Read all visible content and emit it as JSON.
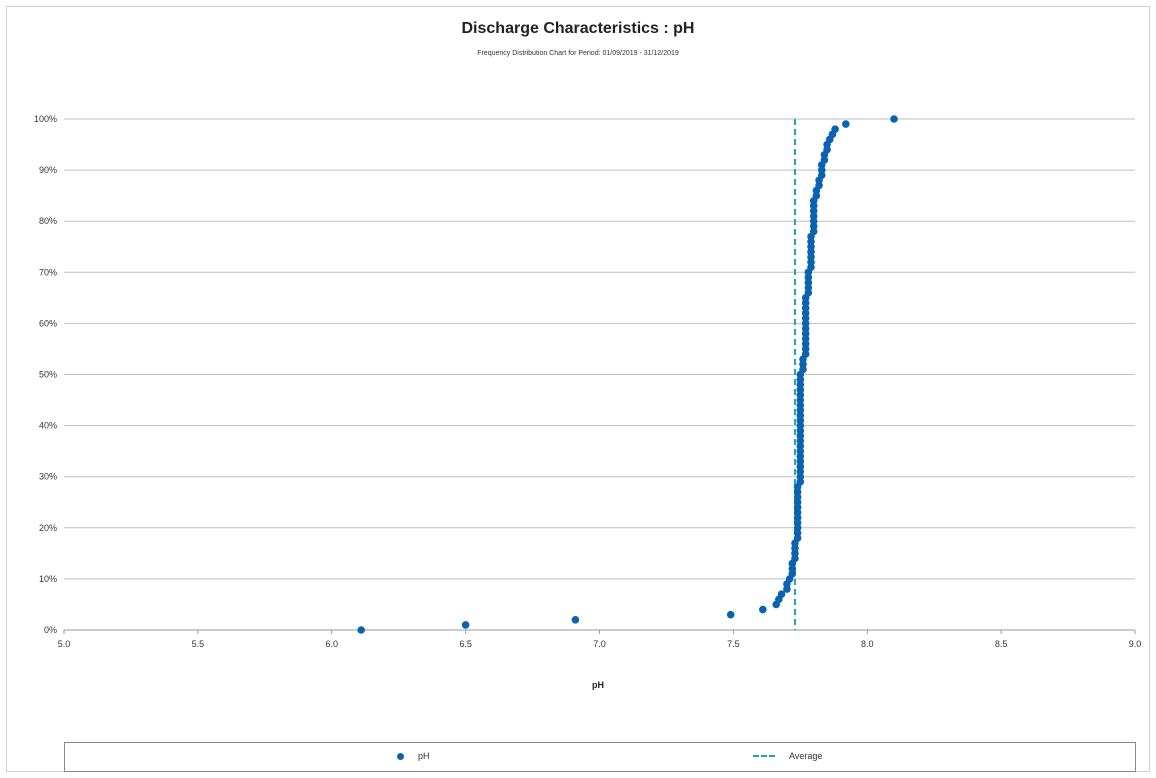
{
  "chart_data": {
    "type": "scatter",
    "title": "Discharge Characteristics : pH",
    "subtitle": "Frequency Distribution Chart for Period: 01/09/2019 - 31/12/2019",
    "xlabel": "pH",
    "ylabel": "",
    "xlim": [
      5.0,
      9.0
    ],
    "ylim": [
      0,
      100
    ],
    "x_ticks": [
      "5.0",
      "5.5",
      "6.0",
      "6.5",
      "7.0",
      "7.5",
      "8.0",
      "8.5",
      "9.0"
    ],
    "y_ticks": [
      "0%",
      "10%",
      "20%",
      "30%",
      "40%",
      "50%",
      "60%",
      "70%",
      "80%",
      "90%",
      "100%"
    ],
    "grid": "horizontal",
    "legend_placement": "bottom",
    "colors": {
      "series": "#0b63b0",
      "average": "#1aa9b4",
      "grid": "#bfbfbf"
    },
    "series": [
      {
        "name": "pH",
        "points": [
          [
            6.11,
            0
          ],
          [
            6.5,
            1
          ],
          [
            6.91,
            2
          ],
          [
            7.49,
            3
          ],
          [
            7.61,
            4
          ],
          [
            7.66,
            5
          ],
          [
            7.67,
            6
          ],
          [
            7.68,
            7
          ],
          [
            7.7,
            8
          ],
          [
            7.7,
            9
          ],
          [
            7.71,
            10
          ],
          [
            7.72,
            11
          ],
          [
            7.72,
            12
          ],
          [
            7.72,
            13
          ],
          [
            7.73,
            14
          ],
          [
            7.73,
            15
          ],
          [
            7.73,
            16
          ],
          [
            7.73,
            17
          ],
          [
            7.74,
            18
          ],
          [
            7.74,
            19
          ],
          [
            7.74,
            20
          ],
          [
            7.74,
            21
          ],
          [
            7.74,
            22
          ],
          [
            7.74,
            23
          ],
          [
            7.74,
            24
          ],
          [
            7.74,
            25
          ],
          [
            7.74,
            26
          ],
          [
            7.74,
            27
          ],
          [
            7.74,
            28
          ],
          [
            7.75,
            29
          ],
          [
            7.75,
            30
          ],
          [
            7.75,
            31
          ],
          [
            7.75,
            32
          ],
          [
            7.75,
            33
          ],
          [
            7.75,
            34
          ],
          [
            7.75,
            35
          ],
          [
            7.75,
            36
          ],
          [
            7.75,
            37
          ],
          [
            7.75,
            38
          ],
          [
            7.75,
            39
          ],
          [
            7.75,
            40
          ],
          [
            7.75,
            41
          ],
          [
            7.75,
            42
          ],
          [
            7.75,
            43
          ],
          [
            7.75,
            44
          ],
          [
            7.75,
            45
          ],
          [
            7.75,
            46
          ],
          [
            7.75,
            47
          ],
          [
            7.75,
            48
          ],
          [
            7.75,
            49
          ],
          [
            7.75,
            50
          ],
          [
            7.76,
            51
          ],
          [
            7.76,
            52
          ],
          [
            7.76,
            53
          ],
          [
            7.77,
            54
          ],
          [
            7.77,
            55
          ],
          [
            7.77,
            56
          ],
          [
            7.77,
            57
          ],
          [
            7.77,
            58
          ],
          [
            7.77,
            59
          ],
          [
            7.77,
            60
          ],
          [
            7.77,
            61
          ],
          [
            7.77,
            62
          ],
          [
            7.77,
            63
          ],
          [
            7.77,
            64
          ],
          [
            7.77,
            65
          ],
          [
            7.78,
            66
          ],
          [
            7.78,
            67
          ],
          [
            7.78,
            68
          ],
          [
            7.78,
            69
          ],
          [
            7.78,
            70
          ],
          [
            7.79,
            71
          ],
          [
            7.79,
            72
          ],
          [
            7.79,
            73
          ],
          [
            7.79,
            74
          ],
          [
            7.79,
            75
          ],
          [
            7.79,
            76
          ],
          [
            7.79,
            77
          ],
          [
            7.8,
            78
          ],
          [
            7.8,
            79
          ],
          [
            7.8,
            80
          ],
          [
            7.8,
            81
          ],
          [
            7.8,
            82
          ],
          [
            7.8,
            83
          ],
          [
            7.8,
            84
          ],
          [
            7.81,
            85
          ],
          [
            7.81,
            86
          ],
          [
            7.82,
            87
          ],
          [
            7.82,
            88
          ],
          [
            7.83,
            89
          ],
          [
            7.83,
            90
          ],
          [
            7.83,
            91
          ],
          [
            7.84,
            92
          ],
          [
            7.84,
            93
          ],
          [
            7.85,
            94
          ],
          [
            7.85,
            95
          ],
          [
            7.86,
            96
          ],
          [
            7.87,
            97
          ],
          [
            7.88,
            98
          ],
          [
            7.92,
            99
          ],
          [
            8.1,
            100
          ]
        ]
      },
      {
        "name": "Average",
        "x": 7.73
      }
    ]
  }
}
